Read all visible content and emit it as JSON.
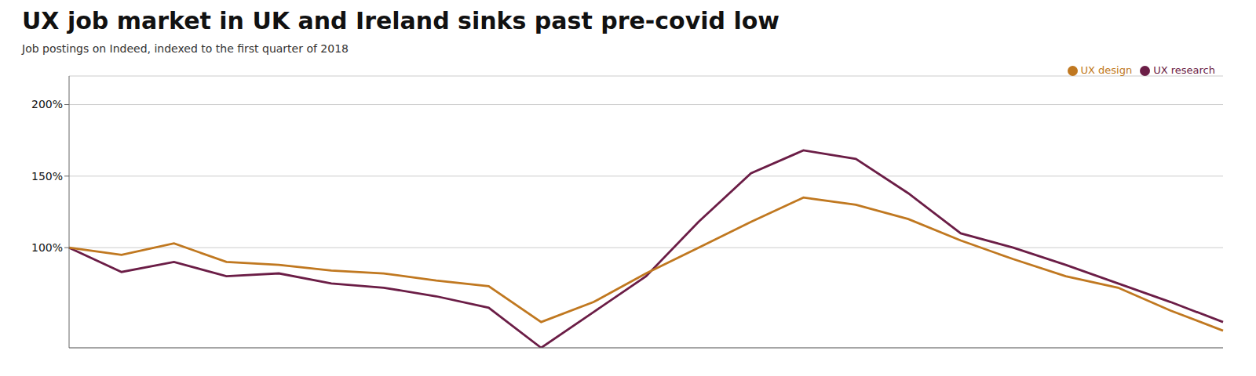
{
  "chart_data": {
    "type": "line",
    "title": "UX job market in UK and Ireland sinks past pre-covid low",
    "subtitle": "Job postings on Indeed, indexed to the first quarter of 2018",
    "categories": [
      null,
      null,
      null,
      null,
      null,
      null,
      null,
      null,
      null,
      null,
      null,
      null,
      null,
      null,
      null,
      null,
      null,
      null,
      null,
      null,
      null,
      null,
      null
    ],
    "series": [
      {
        "name": "UX research",
        "color": "#6B1D46",
        "values": [
          100,
          83,
          90,
          80,
          82,
          75,
          72,
          66,
          58,
          30,
          55,
          80,
          118,
          152,
          168,
          162,
          138,
          110,
          100,
          88,
          75,
          62,
          48
        ]
      },
      {
        "name": "UX design",
        "color": "#C07820",
        "values": [
          100,
          95,
          103,
          90,
          88,
          84,
          82,
          77,
          73,
          48,
          62,
          82,
          100,
          118,
          135,
          130,
          120,
          105,
          92,
          80,
          72,
          56,
          42
        ]
      }
    ],
    "ylim": [
      30,
      220
    ],
    "yticks": [
      {
        "value": 100,
        "label": "100%"
      },
      {
        "value": 150,
        "label": "150%"
      },
      {
        "value": 200,
        "label": "200%"
      }
    ],
    "grid": true,
    "legend": "upper right",
    "tick_labels": "y"
  }
}
